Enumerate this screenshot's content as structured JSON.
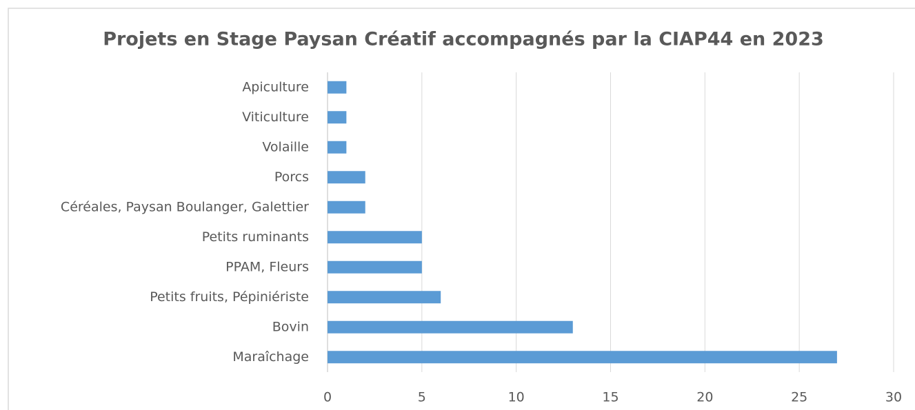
{
  "chart_data": {
    "type": "barh",
    "title": "Projets en Stage Paysan Créatif accompagnés par la CIAP44 en 2023",
    "categories": [
      "Apiculture",
      "Viticulture",
      "Volaille",
      "Porcs",
      "Céréales, Paysan Boulanger, Galettier",
      "Petits ruminants",
      "PPAM, Fleurs",
      "Petits fruits, Pépiniériste",
      "Bovin",
      "Maraîchage"
    ],
    "values": [
      1,
      1,
      1,
      2,
      2,
      5,
      5,
      6,
      13,
      27
    ],
    "color": "#5b9bd5",
    "xlim": [
      0,
      30
    ],
    "xticks": [
      0,
      5,
      10,
      15,
      20,
      25,
      30
    ],
    "grid": true
  }
}
